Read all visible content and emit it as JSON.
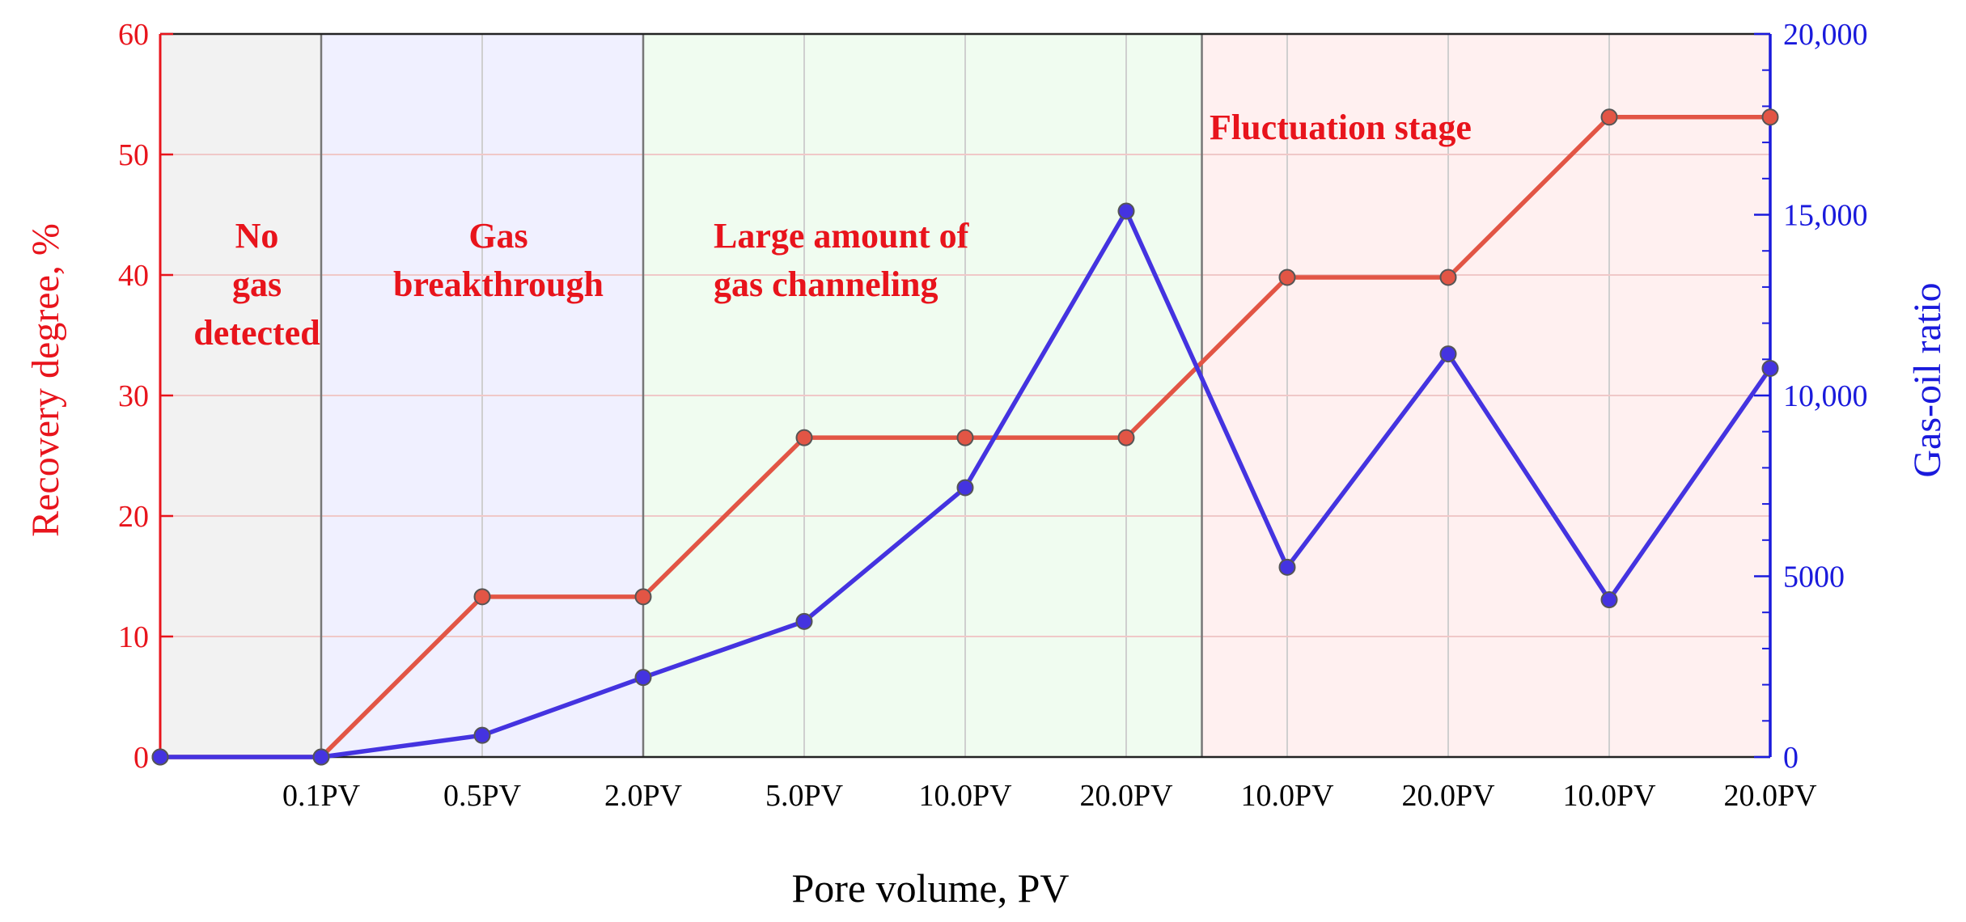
{
  "chart_data": {
    "type": "line",
    "x_categories": [
      "",
      "0.1PV",
      "0.5PV",
      "2.0PV",
      "5.0PV",
      "10.0PV",
      "20.0PV",
      "10.0PV",
      "20.0PV",
      "10.0PV",
      "20.0PV"
    ],
    "xlabel": "Pore volume, PV",
    "ylabel_left": "Recovery degree, %",
    "ylabel_right": "Gas-oil ratio",
    "ylim_left": [
      0,
      60
    ],
    "ylim_right": [
      0,
      20000
    ],
    "yticks_left": [
      "0",
      "10",
      "20",
      "30",
      "40",
      "50",
      "60"
    ],
    "yticks_right": [
      "0",
      "5000",
      "10,000",
      "15,000",
      "20,000"
    ],
    "grid": true,
    "series": [
      {
        "axis": "left",
        "color": "#e25545",
        "values": [
          0,
          0,
          13.3,
          13.3,
          26.5,
          26.5,
          26.5,
          39.8,
          39.8,
          53.1,
          53.1
        ]
      },
      {
        "axis": "right",
        "color": "#4433e0",
        "values": [
          0,
          0,
          600,
          2200,
          3750,
          7450,
          15100,
          5250,
          11150,
          4350,
          10750
        ]
      }
    ],
    "stages": [
      {
        "lines": [
          "No",
          "gas",
          "detected"
        ],
        "from_index": 0,
        "to_index": 1,
        "fill": "#f2f2f2"
      },
      {
        "lines": [
          "Gas",
          "breakthrough"
        ],
        "from_index": 1,
        "to_index": 3,
        "fill": "#f0f0ff"
      },
      {
        "lines": [
          "Large amount of",
          "gas channeling"
        ],
        "from_index": 3,
        "to_index": 6.47,
        "fill": "#f0fcf0"
      },
      {
        "lines": [
          "Fluctuation stage"
        ],
        "from_index": 6.47,
        "to_index": 10,
        "fill": "#fff0f0"
      }
    ]
  }
}
